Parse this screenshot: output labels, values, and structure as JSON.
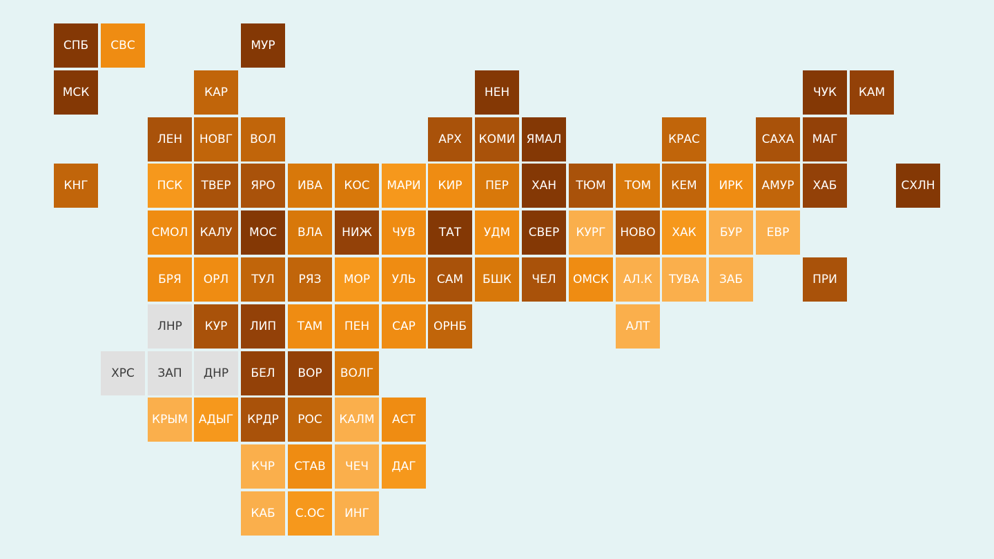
{
  "map": {
    "colors": {
      "0": "#e0e0e0",
      "1": "#faaf4c",
      "2": "#f6981c",
      "3": "#ef8c12",
      "4": "#d8780a",
      "5": "#c1650a",
      "6": "#a9520a",
      "7": "#934108",
      "8": "#843805"
    },
    "tiles": [
      {
        "label": "СПБ",
        "row": 0,
        "col": 0,
        "shade": 8
      },
      {
        "label": "СВС",
        "row": 0,
        "col": 1,
        "shade": 3
      },
      {
        "label": "МУР",
        "row": 0,
        "col": 4,
        "shade": 8
      },
      {
        "label": "МСК",
        "row": 1,
        "col": 0,
        "shade": 8
      },
      {
        "label": "КАР",
        "row": 1,
        "col": 3,
        "shade": 5
      },
      {
        "label": "НЕН",
        "row": 1,
        "col": 9,
        "shade": 8
      },
      {
        "label": "ЧУК",
        "row": 1,
        "col": 16,
        "shade": 8
      },
      {
        "label": "КАМ",
        "row": 1,
        "col": 17,
        "shade": 7
      },
      {
        "label": "ЛЕН",
        "row": 2,
        "col": 2,
        "shade": 6
      },
      {
        "label": "НОВГ",
        "row": 2,
        "col": 3,
        "shade": 5
      },
      {
        "label": "ВОЛ",
        "row": 2,
        "col": 4,
        "shade": 5
      },
      {
        "label": "АРХ",
        "row": 2,
        "col": 8,
        "shade": 6
      },
      {
        "label": "КОМИ",
        "row": 2,
        "col": 9,
        "shade": 6
      },
      {
        "label": "ЯМАЛ",
        "row": 2,
        "col": 10,
        "shade": 8
      },
      {
        "label": "КРАС",
        "row": 2,
        "col": 13,
        "shade": 5
      },
      {
        "label": "САХА",
        "row": 2,
        "col": 15,
        "shade": 6
      },
      {
        "label": "МАГ",
        "row": 2,
        "col": 16,
        "shade": 7
      },
      {
        "label": "КНГ",
        "row": 3,
        "col": 0,
        "shade": 5
      },
      {
        "label": "ПСК",
        "row": 3,
        "col": 2,
        "shade": 2
      },
      {
        "label": "ТВЕР",
        "row": 3,
        "col": 3,
        "shade": 6
      },
      {
        "label": "ЯРО",
        "row": 3,
        "col": 4,
        "shade": 6
      },
      {
        "label": "ИВА",
        "row": 3,
        "col": 5,
        "shade": 4
      },
      {
        "label": "КОС",
        "row": 3,
        "col": 6,
        "shade": 4
      },
      {
        "label": "МАРИ",
        "row": 3,
        "col": 7,
        "shade": 2
      },
      {
        "label": "КИР",
        "row": 3,
        "col": 8,
        "shade": 3
      },
      {
        "label": "ПЕР",
        "row": 3,
        "col": 9,
        "shade": 4
      },
      {
        "label": "ХАН",
        "row": 3,
        "col": 10,
        "shade": 8
      },
      {
        "label": "ТЮМ",
        "row": 3,
        "col": 11,
        "shade": 6
      },
      {
        "label": "ТОМ",
        "row": 3,
        "col": 12,
        "shade": 4
      },
      {
        "label": "КЕМ",
        "row": 3,
        "col": 13,
        "shade": 5
      },
      {
        "label": "ИРК",
        "row": 3,
        "col": 14,
        "shade": 3
      },
      {
        "label": "АМУР",
        "row": 3,
        "col": 15,
        "shade": 5
      },
      {
        "label": "ХАБ",
        "row": 3,
        "col": 16,
        "shade": 7
      },
      {
        "label": "СХЛН",
        "row": 3,
        "col": 18,
        "shade": 8
      },
      {
        "label": "СМОЛ",
        "row": 4,
        "col": 2,
        "shade": 3
      },
      {
        "label": "КАЛУ",
        "row": 4,
        "col": 3,
        "shade": 6
      },
      {
        "label": "МОС",
        "row": 4,
        "col": 4,
        "shade": 8
      },
      {
        "label": "ВЛА",
        "row": 4,
        "col": 5,
        "shade": 4
      },
      {
        "label": "НИЖ",
        "row": 4,
        "col": 6,
        "shade": 7
      },
      {
        "label": "ЧУВ",
        "row": 4,
        "col": 7,
        "shade": 3
      },
      {
        "label": "ТАТ",
        "row": 4,
        "col": 8,
        "shade": 8
      },
      {
        "label": "УДМ",
        "row": 4,
        "col": 9,
        "shade": 3
      },
      {
        "label": "СВЕР",
        "row": 4,
        "col": 10,
        "shade": 8
      },
      {
        "label": "КУРГ",
        "row": 4,
        "col": 11,
        "shade": 1
      },
      {
        "label": "НОВО",
        "row": 4,
        "col": 12,
        "shade": 6
      },
      {
        "label": "ХАК",
        "row": 4,
        "col": 13,
        "shade": 2
      },
      {
        "label": "БУР",
        "row": 4,
        "col": 14,
        "shade": 1
      },
      {
        "label": "ЕВР",
        "row": 4,
        "col": 15,
        "shade": 1
      },
      {
        "label": "БРЯ",
        "row": 5,
        "col": 2,
        "shade": 3
      },
      {
        "label": "ОРЛ",
        "row": 5,
        "col": 3,
        "shade": 3
      },
      {
        "label": "ТУЛ",
        "row": 5,
        "col": 4,
        "shade": 5
      },
      {
        "label": "РЯЗ",
        "row": 5,
        "col": 5,
        "shade": 5
      },
      {
        "label": "МОР",
        "row": 5,
        "col": 6,
        "shade": 2
      },
      {
        "label": "УЛЬ",
        "row": 5,
        "col": 7,
        "shade": 3
      },
      {
        "label": "САМ",
        "row": 5,
        "col": 8,
        "shade": 6
      },
      {
        "label": "БШК",
        "row": 5,
        "col": 9,
        "shade": 4
      },
      {
        "label": "ЧЕЛ",
        "row": 5,
        "col": 10,
        "shade": 6
      },
      {
        "label": "ОМСК",
        "row": 5,
        "col": 11,
        "shade": 3
      },
      {
        "label": "АЛ.К",
        "row": 5,
        "col": 12,
        "shade": 1
      },
      {
        "label": "ТУВА",
        "row": 5,
        "col": 13,
        "shade": 1
      },
      {
        "label": "ЗАБ",
        "row": 5,
        "col": 14,
        "shade": 1
      },
      {
        "label": "ПРИ",
        "row": 5,
        "col": 16,
        "shade": 6
      },
      {
        "label": "ЛНР",
        "row": 6,
        "col": 2,
        "shade": 0
      },
      {
        "label": "КУР",
        "row": 6,
        "col": 3,
        "shade": 6
      },
      {
        "label": "ЛИП",
        "row": 6,
        "col": 4,
        "shade": 7
      },
      {
        "label": "ТАМ",
        "row": 6,
        "col": 5,
        "shade": 3
      },
      {
        "label": "ПЕН",
        "row": 6,
        "col": 6,
        "shade": 3
      },
      {
        "label": "САР",
        "row": 6,
        "col": 7,
        "shade": 3
      },
      {
        "label": "ОРНБ",
        "row": 6,
        "col": 8,
        "shade": 5
      },
      {
        "label": "АЛТ",
        "row": 6,
        "col": 12,
        "shade": 1
      },
      {
        "label": "ХРС",
        "row": 7,
        "col": 1,
        "shade": 0
      },
      {
        "label": "ЗАП",
        "row": 7,
        "col": 2,
        "shade": 0
      },
      {
        "label": "ДНР",
        "row": 7,
        "col": 3,
        "shade": 0
      },
      {
        "label": "БЕЛ",
        "row": 7,
        "col": 4,
        "shade": 7
      },
      {
        "label": "ВОР",
        "row": 7,
        "col": 5,
        "shade": 7
      },
      {
        "label": "ВОЛГ",
        "row": 7,
        "col": 6,
        "shade": 4
      },
      {
        "label": "КРЫМ",
        "row": 8,
        "col": 2,
        "shade": 1
      },
      {
        "label": "АДЫГ",
        "row": 8,
        "col": 3,
        "shade": 2
      },
      {
        "label": "КРДР",
        "row": 8,
        "col": 4,
        "shade": 6
      },
      {
        "label": "РОС",
        "row": 8,
        "col": 5,
        "shade": 5
      },
      {
        "label": "КАЛМ",
        "row": 8,
        "col": 6,
        "shade": 1
      },
      {
        "label": "АСТ",
        "row": 8,
        "col": 7,
        "shade": 3
      },
      {
        "label": "КЧР",
        "row": 9,
        "col": 4,
        "shade": 1
      },
      {
        "label": "СТАВ",
        "row": 9,
        "col": 5,
        "shade": 3
      },
      {
        "label": "ЧЕЧ",
        "row": 9,
        "col": 6,
        "shade": 1
      },
      {
        "label": "ДАГ",
        "row": 9,
        "col": 7,
        "shade": 2
      },
      {
        "label": "КАБ",
        "row": 10,
        "col": 4,
        "shade": 1
      },
      {
        "label": "С.ОС",
        "row": 10,
        "col": 5,
        "shade": 2
      },
      {
        "label": "ИНГ",
        "row": 10,
        "col": 6,
        "shade": 1
      }
    ]
  }
}
